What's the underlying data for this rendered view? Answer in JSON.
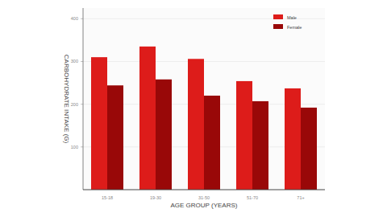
{
  "chart_data": {
    "type": "bar",
    "x_label": "AGE GROUP (YEARS)",
    "y_label": "CARBOHYDRATE INTAKE (G)",
    "categories": [
      "15-18",
      "19-30",
      "31-50",
      "51-70",
      "71+"
    ],
    "series": [
      {
        "name": "Male",
        "color": "#dd1c1a",
        "values": [
          310,
          335,
          306,
          254,
          237
        ]
      },
      {
        "name": "Female",
        "color": "#990808",
        "values": [
          244,
          258,
          220,
          207,
          192
        ]
      }
    ],
    "ylim": [
      0,
      425
    ],
    "yticks": [
      100,
      200,
      300,
      400
    ],
    "grid": true,
    "legend": "upper right"
  }
}
